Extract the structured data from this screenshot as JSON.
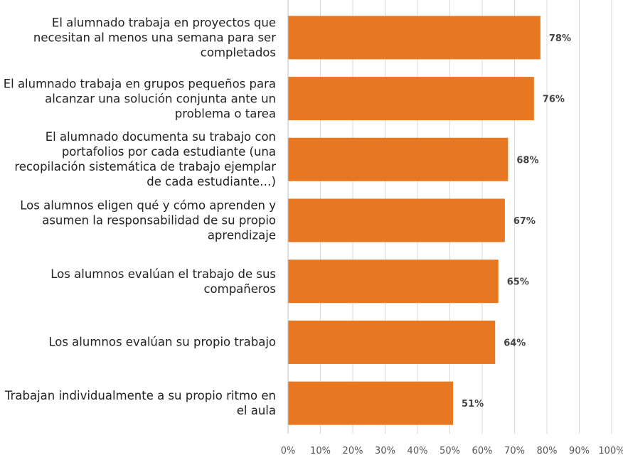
{
  "chart_data": {
    "type": "barh",
    "categories": [
      "El alumnado trabaja en proyectos que necesitan al menos una semana para ser completados",
      "El alumnado trabaja en grupos pequeños para alcanzar una solución conjunta ante un problema o tarea",
      "El alumnado documenta su trabajo con portafolios por cada estudiante (una recopilación sistemática de trabajo ejemplar de cada estudiante…)",
      "Los alumnos eligen qué y cómo aprenden y asumen la responsabilidad de su propio aprendizaje",
      "Los alumnos evalúan el trabajo de sus compañeros",
      "Los alumnos evalúan su propio trabajo",
      "Trabajan individualmente a su propio ritmo en el aula"
    ],
    "values": [
      78,
      76,
      68,
      67,
      65,
      64,
      51
    ],
    "value_labels": [
      "78%",
      "76%",
      "68%",
      "67%",
      "65%",
      "64%",
      "51%"
    ],
    "color": "#e87722",
    "xlim": [
      0,
      100
    ],
    "xticks": [
      {
        "value": 0,
        "label": "0%"
      },
      {
        "value": 10,
        "label": "10%"
      },
      {
        "value": 20,
        "label": "20%"
      },
      {
        "value": 30,
        "label": "30%"
      },
      {
        "value": 40,
        "label": "40%"
      },
      {
        "value": 50,
        "label": "50%"
      },
      {
        "value": 60,
        "label": "60%"
      },
      {
        "value": 70,
        "label": "70%"
      },
      {
        "value": 80,
        "label": "80%"
      },
      {
        "value": 90,
        "label": "90%"
      },
      {
        "value": 100,
        "label": "100%"
      }
    ],
    "grid": true
  }
}
